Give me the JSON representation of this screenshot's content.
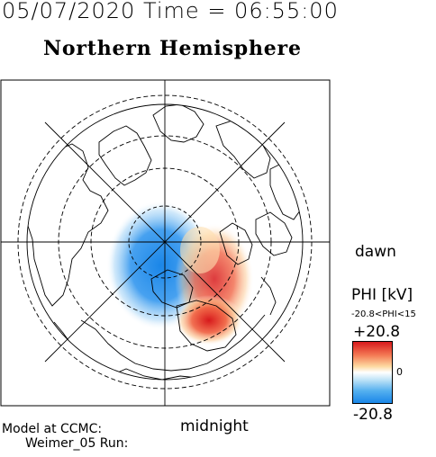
{
  "header": {
    "datetime": "05/07/2020 Time = 06:55:00",
    "title": "Northern Hemisphere"
  },
  "map": {
    "labels": {
      "dawn": "dawn",
      "midnight": "midnight"
    }
  },
  "colorbar": {
    "title": "PHI [kV]",
    "range_text": "-20.8<PHI<15",
    "max_label": "+20.8",
    "zero_label": "0",
    "min_label": "-20.8",
    "colors": {
      "positive": "#d7191c",
      "zero": "#ffffff",
      "negative": "#1a86e8"
    }
  },
  "footer": {
    "model_line1": "Model at CCMC:",
    "model_line2": "Weimer_05 Run:"
  }
}
